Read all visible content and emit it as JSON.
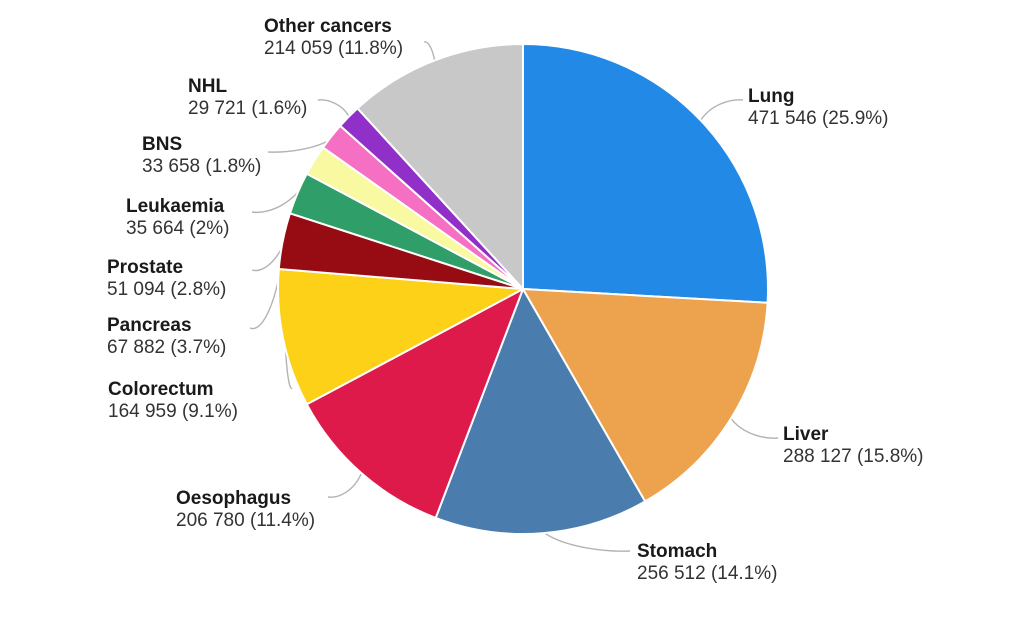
{
  "chart_data": {
    "type": "pie",
    "title": "",
    "layout": {
      "start_angle_deg": 90,
      "direction": "clockwise",
      "legend": "none",
      "labels": "outside-with-leader-lines",
      "background": "#ffffff"
    },
    "slice_stroke": "#ffffff",
    "leader_line_color": "#b3b3b3",
    "slices": [
      {
        "label": "Lung",
        "value": 471546,
        "percent": 25.9,
        "value_display": "471 546 (25.9%)",
        "color": "#2289e6"
      },
      {
        "label": "Liver",
        "value": 288127,
        "percent": 15.8,
        "value_display": "288 127 (15.8%)",
        "color": "#eda24e"
      },
      {
        "label": "Stomach",
        "value": 256512,
        "percent": 14.1,
        "value_display": "256 512 (14.1%)",
        "color": "#4a7dad"
      },
      {
        "label": "Oesophagus",
        "value": 206780,
        "percent": 11.4,
        "value_display": "206 780 (11.4%)",
        "color": "#dd1a4a"
      },
      {
        "label": "Colorectum",
        "value": 164959,
        "percent": 9.1,
        "value_display": "164 959 (9.1%)",
        "color": "#fcd118"
      },
      {
        "label": "Pancreas",
        "value": 67882,
        "percent": 3.7,
        "value_display": "67 882 (3.7%)",
        "color": "#970c13"
      },
      {
        "label": "Prostate",
        "value": 51094,
        "percent": 2.8,
        "value_display": "51 094 (2.8%)",
        "color": "#2f9e68"
      },
      {
        "label": "Leukaemia",
        "value": 35664,
        "percent": 2,
        "value_display": "35 664 (2%)",
        "color": "#f8f9a0"
      },
      {
        "label": "BNS",
        "value": 33658,
        "percent": 1.8,
        "value_display": "33 658 (1.8%)",
        "color": "#f56fc3"
      },
      {
        "label": "NHL",
        "value": 29721,
        "percent": 1.6,
        "value_display": "29 721 (1.6%)",
        "color": "#9130c9"
      },
      {
        "label": "Other cancers",
        "value": 214059,
        "percent": 11.8,
        "value_display": "214 059 (11.8%)",
        "color": "#c8c8c8"
      }
    ]
  }
}
